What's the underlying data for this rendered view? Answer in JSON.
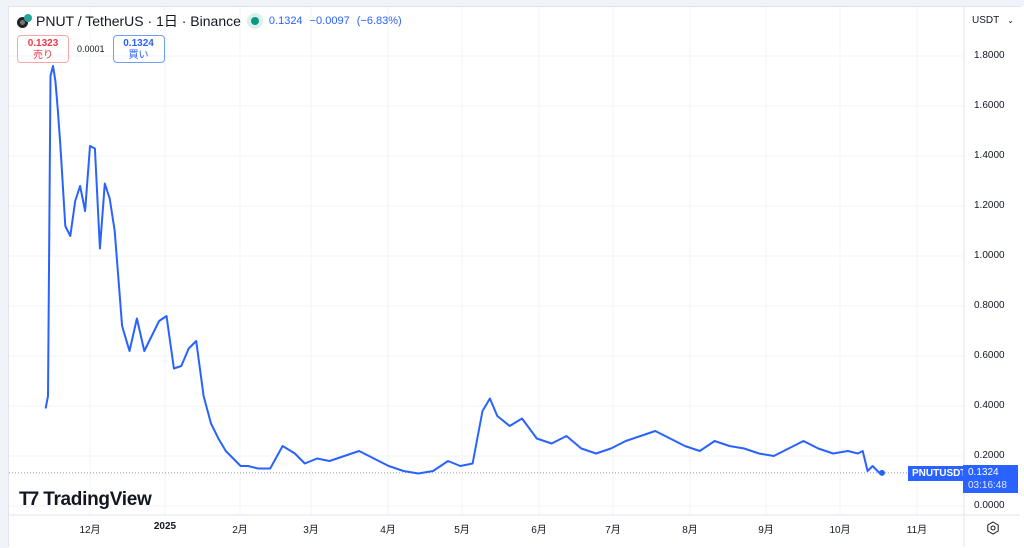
{
  "header": {
    "symbol": "PNUT / TetherUS · 1日 · Binance",
    "last": "0.1324",
    "change": "−0.0097",
    "change_pct": "(−6.83%)",
    "sell": {
      "price": "0.1323",
      "label": "売り"
    },
    "spread": "0.0001",
    "buy": {
      "price": "0.1324",
      "label": "買い"
    }
  },
  "currency_select": {
    "label": "USDT"
  },
  "price_axis": {
    "labels": [
      "1.8000",
      "1.6000",
      "1.4000",
      "1.2000",
      "1.0000",
      "0.8000",
      "0.6000",
      "0.4000",
      "0.2000",
      "0.0000"
    ]
  },
  "time_axis": {
    "labels": [
      "12月",
      "2025",
      "2月",
      "3月",
      "4月",
      "5月",
      "6月",
      "7月",
      "8月",
      "9月",
      "10月",
      "11月"
    ]
  },
  "last_price_marker": {
    "symbol": "PNUTUSDT",
    "price": "0.1324",
    "countdown": "03:16:48"
  },
  "branding": {
    "logo_text": "TradingView"
  },
  "colors": {
    "line": "#2962ff",
    "sell": "#f23645",
    "buy": "#2962ff",
    "live_dot": "#089981"
  },
  "chart_data": {
    "type": "line",
    "title": "PNUT / TetherUS · 1日 · Binance",
    "xlabel": "",
    "ylabel": "USDT",
    "ylim": [
      0,
      1.9
    ],
    "grid": true,
    "legend_position": "none",
    "x": [
      "2024-11-13",
      "2024-11-14",
      "2024-11-15",
      "2024-11-16",
      "2024-11-17",
      "2024-11-18",
      "2024-11-19",
      "2024-11-21",
      "2024-11-23",
      "2024-11-25",
      "2024-11-27",
      "2024-11-29",
      "2024-12-01",
      "2024-12-03",
      "2024-12-05",
      "2024-12-07",
      "2024-12-09",
      "2024-12-11",
      "2024-12-14",
      "2024-12-17",
      "2024-12-20",
      "2024-12-23",
      "2024-12-26",
      "2024-12-29",
      "2025-01-01",
      "2025-01-04",
      "2025-01-07",
      "2025-01-10",
      "2025-01-13",
      "2025-01-16",
      "2025-01-19",
      "2025-01-22",
      "2025-01-25",
      "2025-01-28",
      "2025-01-31",
      "2025-02-03",
      "2025-02-07",
      "2025-02-12",
      "2025-02-17",
      "2025-02-22",
      "2025-02-26",
      "2025-03-03",
      "2025-03-08",
      "2025-03-14",
      "2025-03-20",
      "2025-03-26",
      "2025-04-01",
      "2025-04-07",
      "2025-04-13",
      "2025-04-19",
      "2025-04-25",
      "2025-04-30",
      "2025-05-05",
      "2025-05-09",
      "2025-05-12",
      "2025-05-15",
      "2025-05-20",
      "2025-05-25",
      "2025-05-31",
      "2025-06-06",
      "2025-06-12",
      "2025-06-18",
      "2025-06-24",
      "2025-06-30",
      "2025-07-06",
      "2025-07-12",
      "2025-07-18",
      "2025-07-24",
      "2025-07-30",
      "2025-08-05",
      "2025-08-11",
      "2025-08-17",
      "2025-08-23",
      "2025-08-29",
      "2025-09-04",
      "2025-09-10",
      "2025-09-16",
      "2025-09-22",
      "2025-09-28",
      "2025-10-04",
      "2025-10-08",
      "2025-10-10",
      "2025-10-12",
      "2025-10-14",
      "2025-10-17"
    ],
    "values": [
      0.39,
      0.44,
      1.72,
      1.76,
      1.7,
      1.58,
      1.44,
      1.12,
      1.08,
      1.22,
      1.28,
      1.18,
      1.44,
      1.43,
      1.03,
      1.29,
      1.23,
      1.1,
      0.72,
      0.62,
      0.75,
      0.62,
      0.68,
      0.74,
      0.76,
      0.55,
      0.56,
      0.63,
      0.66,
      0.44,
      0.33,
      0.27,
      0.22,
      0.19,
      0.16,
      0.16,
      0.15,
      0.15,
      0.24,
      0.21,
      0.17,
      0.19,
      0.18,
      0.2,
      0.22,
      0.19,
      0.16,
      0.14,
      0.13,
      0.14,
      0.18,
      0.16,
      0.17,
      0.38,
      0.43,
      0.36,
      0.32,
      0.35,
      0.27,
      0.25,
      0.28,
      0.23,
      0.21,
      0.23,
      0.26,
      0.28,
      0.3,
      0.27,
      0.24,
      0.22,
      0.26,
      0.24,
      0.23,
      0.21,
      0.2,
      0.23,
      0.26,
      0.23,
      0.21,
      0.22,
      0.21,
      0.22,
      0.14,
      0.16,
      0.13
    ],
    "last_value": 0.1324
  }
}
